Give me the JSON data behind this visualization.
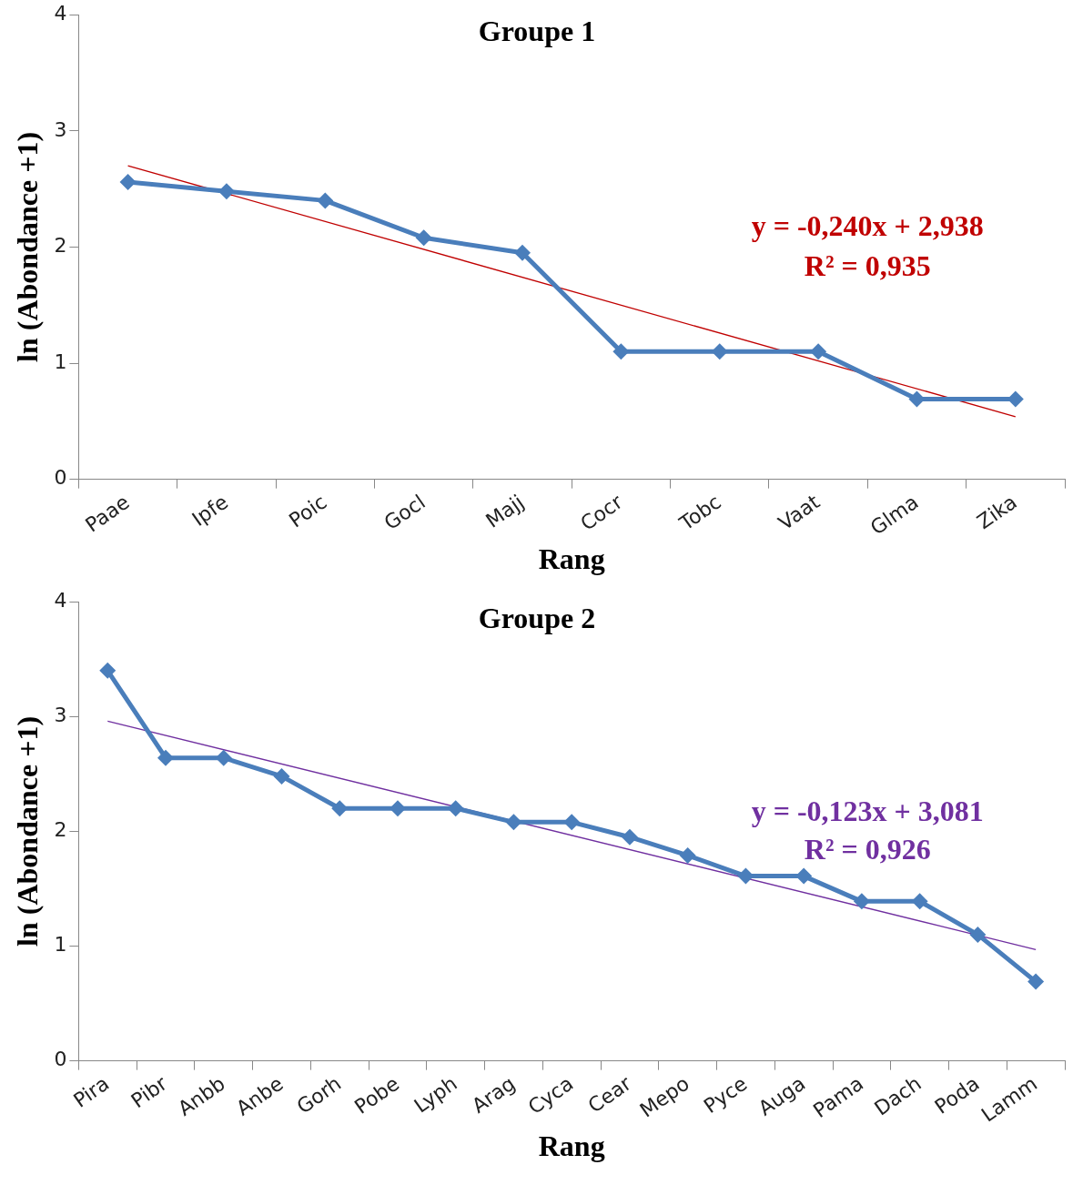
{
  "chart_data": [
    {
      "type": "line",
      "title": "Groupe 1",
      "xlabel": "Rang",
      "ylabel": "ln (Abondance +1)",
      "categories": [
        "Paae",
        "Ipfe",
        "Poic",
        "Gocl",
        "Majj",
        "Cocr",
        "Tobc",
        "Vaat",
        "Glma",
        "Zika"
      ],
      "series": [
        {
          "color": "#4a7ebb",
          "values": [
            2.56,
            2.48,
            2.4,
            2.08,
            1.95,
            1.1,
            1.1,
            1.1,
            0.69,
            0.69
          ],
          "marker": "diamond"
        },
        {
          "type": "line",
          "color": "#c00000",
          "x": [
            "Paae",
            "Zika"
          ],
          "values": [
            2.7,
            0.54
          ],
          "marker": "none"
        }
      ],
      "ylim": [
        0,
        4
      ],
      "yticks": [
        0,
        1,
        2,
        3,
        4
      ],
      "grid": false,
      "legend": false,
      "annotations": [
        "y = -0,240x + 2,938",
        "R² = 0,935"
      ]
    },
    {
      "type": "line",
      "title": "Groupe 2",
      "xlabel": "Rang",
      "ylabel": "ln (Abondance +1)",
      "categories": [
        "Pira",
        "Pibr",
        "Anbb",
        "Anbe",
        "Gorh",
        "Pobe",
        "Lyph",
        "Arag",
        "Cyca",
        "Cear",
        "Mepo",
        "Pyce",
        "Auga",
        "Pama",
        "Dach",
        "Poda",
        "Lamm"
      ],
      "series": [
        {
          "color": "#4a7ebb",
          "values": [
            3.4,
            2.64,
            2.64,
            2.48,
            2.2,
            2.2,
            2.2,
            2.08,
            2.08,
            1.95,
            1.79,
            1.61,
            1.61,
            1.39,
            1.39,
            1.1,
            0.69
          ],
          "marker": "diamond"
        },
        {
          "type": "line",
          "color": "#7030a0",
          "x": [
            "Pira",
            "Lamm"
          ],
          "values": [
            2.96,
            0.97
          ],
          "marker": "none"
        }
      ],
      "ylim": [
        0,
        4
      ],
      "yticks": [
        0,
        1,
        2,
        3,
        4
      ],
      "grid": false,
      "legend": false,
      "annotations": [
        "y = -0,123x + 3,081",
        "R² = 0,926"
      ]
    }
  ]
}
